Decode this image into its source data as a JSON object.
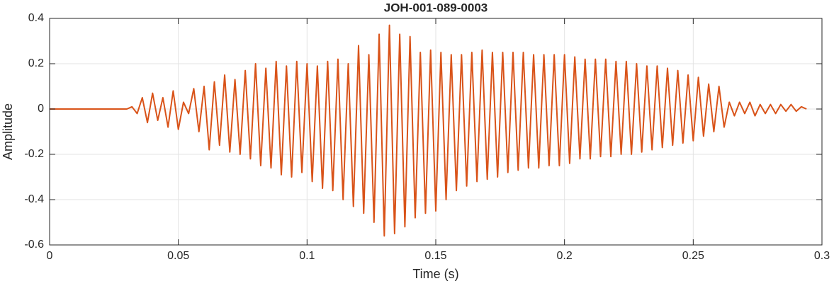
{
  "chart_data": {
    "type": "line",
    "title": "JOH-001-089-0003",
    "x_label": "Time (s)",
    "y_label": "Amplitude",
    "xlim": [
      0,
      0.3
    ],
    "xticks": [
      0,
      0.05,
      0.1,
      0.15,
      0.2,
      0.25,
      0.3
    ],
    "ylim": [
      -0.6,
      0.4
    ],
    "yticks": [
      -0.6,
      -0.4,
      -0.2,
      0,
      0.2,
      0.4
    ],
    "grid": true,
    "x": [
      0,
      0.03,
      0.032,
      0.034,
      0.036,
      0.038,
      0.04,
      0.042,
      0.044,
      0.046,
      0.048,
      0.05,
      0.052,
      0.054,
      0.056,
      0.058,
      0.06,
      0.062,
      0.064,
      0.066,
      0.068,
      0.07,
      0.072,
      0.074,
      0.076,
      0.078,
      0.08,
      0.082,
      0.084,
      0.086,
      0.088,
      0.09,
      0.092,
      0.094,
      0.096,
      0.098,
      0.1,
      0.102,
      0.104,
      0.106,
      0.108,
      0.11,
      0.112,
      0.114,
      0.116,
      0.118,
      0.12,
      0.122,
      0.124,
      0.126,
      0.128,
      0.13,
      0.132,
      0.134,
      0.136,
      0.138,
      0.14,
      0.142,
      0.144,
      0.146,
      0.148,
      0.15,
      0.152,
      0.154,
      0.156,
      0.158,
      0.16,
      0.162,
      0.164,
      0.166,
      0.168,
      0.17,
      0.172,
      0.174,
      0.176,
      0.178,
      0.18,
      0.182,
      0.184,
      0.186,
      0.188,
      0.19,
      0.192,
      0.194,
      0.196,
      0.198,
      0.2,
      0.202,
      0.204,
      0.206,
      0.208,
      0.21,
      0.212,
      0.214,
      0.216,
      0.218,
      0.22,
      0.222,
      0.224,
      0.226,
      0.228,
      0.23,
      0.232,
      0.234,
      0.236,
      0.238,
      0.24,
      0.242,
      0.244,
      0.246,
      0.248,
      0.25,
      0.252,
      0.254,
      0.256,
      0.258,
      0.26,
      0.262,
      0.264,
      0.266,
      0.268,
      0.27,
      0.272,
      0.274,
      0.276,
      0.278,
      0.28,
      0.282,
      0.284,
      0.286,
      0.288,
      0.29,
      0.292,
      0.294
    ],
    "series": [
      {
        "name": "Amplitude",
        "color": "#d95319",
        "values": [
          0,
          0,
          0.01,
          -0.02,
          0.05,
          -0.06,
          0.07,
          -0.05,
          0.05,
          -0.08,
          0.08,
          -0.09,
          0.03,
          -0.02,
          0.09,
          -0.1,
          0.1,
          -0.18,
          0.12,
          -0.16,
          0.15,
          -0.19,
          0.13,
          -0.2,
          0.17,
          -0.22,
          0.2,
          -0.25,
          0.18,
          -0.26,
          0.21,
          -0.29,
          0.19,
          -0.3,
          0.21,
          -0.28,
          0.2,
          -0.32,
          0.19,
          -0.35,
          0.21,
          -0.36,
          0.22,
          -0.4,
          0.2,
          -0.43,
          0.28,
          -0.46,
          0.24,
          -0.5,
          0.33,
          -0.56,
          0.37,
          -0.55,
          0.33,
          -0.52,
          0.32,
          -0.48,
          0.25,
          -0.46,
          0.26,
          -0.45,
          0.25,
          -0.4,
          0.24,
          -0.36,
          0.24,
          -0.34,
          0.25,
          -0.32,
          0.26,
          -0.31,
          0.25,
          -0.3,
          0.25,
          -0.28,
          0.25,
          -0.27,
          0.25,
          -0.26,
          0.24,
          -0.26,
          0.24,
          -0.25,
          0.24,
          -0.25,
          0.24,
          -0.24,
          0.23,
          -0.22,
          0.22,
          -0.22,
          0.22,
          -0.21,
          0.22,
          -0.21,
          0.21,
          -0.2,
          0.21,
          -0.2,
          0.2,
          -0.19,
          0.19,
          -0.18,
          0.19,
          -0.17,
          0.18,
          -0.16,
          0.17,
          -0.15,
          0.15,
          -0.14,
          0.14,
          -0.12,
          0.11,
          -0.1,
          0.1,
          -0.08,
          0.03,
          -0.03,
          0.03,
          -0.02,
          0.03,
          -0.03,
          0.02,
          -0.02,
          0.02,
          -0.02,
          0.02,
          -0.01,
          0.02,
          -0.01,
          0.01,
          0
        ]
      }
    ]
  }
}
